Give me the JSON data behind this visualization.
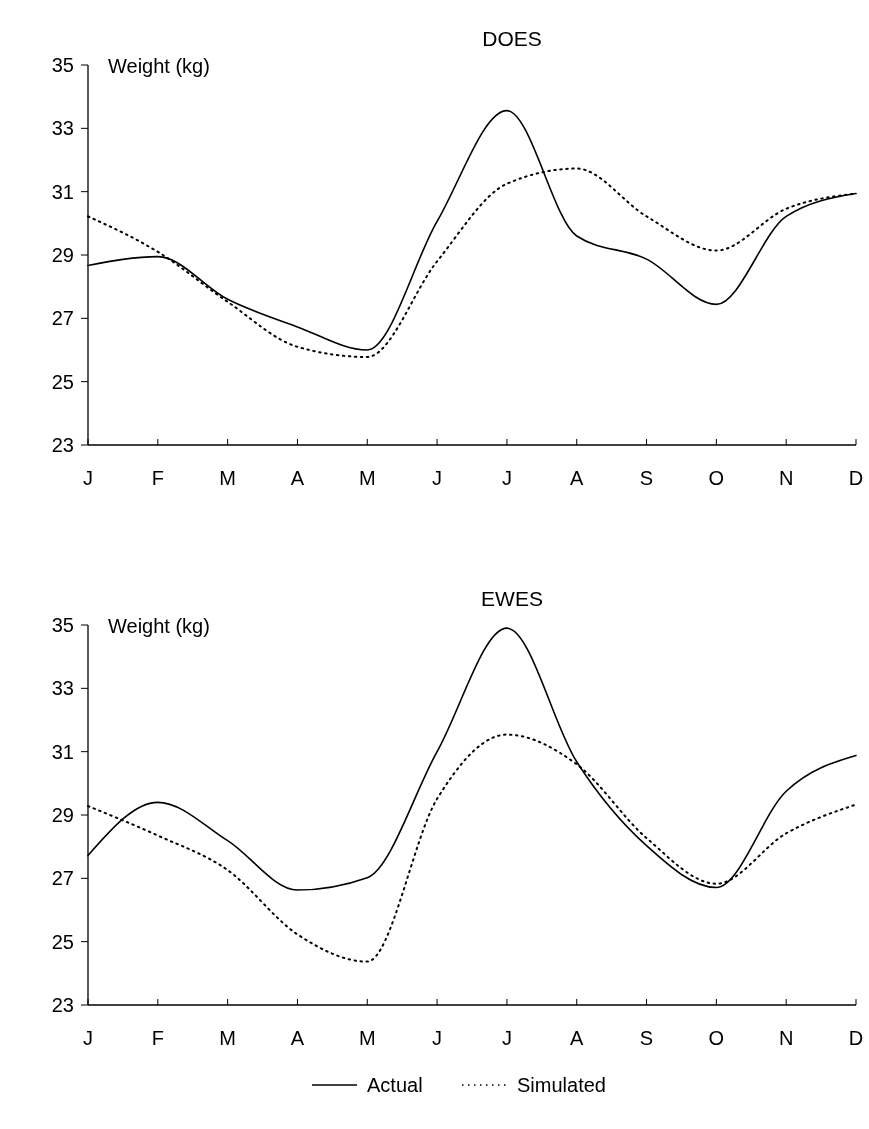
{
  "chart_data": [
    {
      "type": "line",
      "title": "DOES",
      "ylabel": "Weight  (kg)",
      "categories": [
        "J",
        "F",
        "M",
        "A",
        "M",
        "J",
        "J",
        "A",
        "S",
        "O",
        "N",
        "D"
      ],
      "ylim": [
        23,
        35
      ],
      "yticks": [
        23,
        25,
        27,
        29,
        31,
        33,
        35
      ],
      "grid": false,
      "legend": false,
      "series": [
        {
          "color": "#000000",
          "line_style": "solid",
          "values": [
            28.67,
            28.95,
            27.6,
            26.73,
            26.0,
            30.06,
            33.56,
            29.6,
            28.87,
            27.44,
            30.22,
            30.94
          ]
        },
        {
          "color": "#000000",
          "line_style": "dotted",
          "values": [
            30.22,
            29.1,
            27.52,
            26.1,
            25.78,
            28.8,
            31.25,
            31.73,
            30.22,
            29.14,
            30.46,
            30.94
          ]
        }
      ]
    },
    {
      "type": "line",
      "title": "EWES",
      "ylabel": "Weight  (kg)",
      "categories": [
        "J",
        "F",
        "M",
        "A",
        "M",
        "J",
        "J",
        "A",
        "S",
        "O",
        "N",
        "D"
      ],
      "ylim": [
        23,
        35
      ],
      "yticks": [
        23,
        25,
        27,
        29,
        31,
        33,
        35
      ],
      "grid": false,
      "legend": "bottom",
      "series": [
        {
          "name": "Actual",
          "color": "#000000",
          "line_style": "solid",
          "values": [
            27.72,
            29.4,
            28.19,
            26.63,
            27.02,
            31.0,
            34.9,
            30.68,
            28.03,
            26.71,
            29.75,
            30.88
          ]
        },
        {
          "name": "Simulated",
          "color": "#000000",
          "line_style": "dotted",
          "values": [
            29.28,
            28.35,
            27.26,
            25.23,
            24.37,
            29.51,
            31.54,
            30.6,
            28.27,
            26.83,
            28.42,
            29.33
          ]
        }
      ]
    }
  ]
}
